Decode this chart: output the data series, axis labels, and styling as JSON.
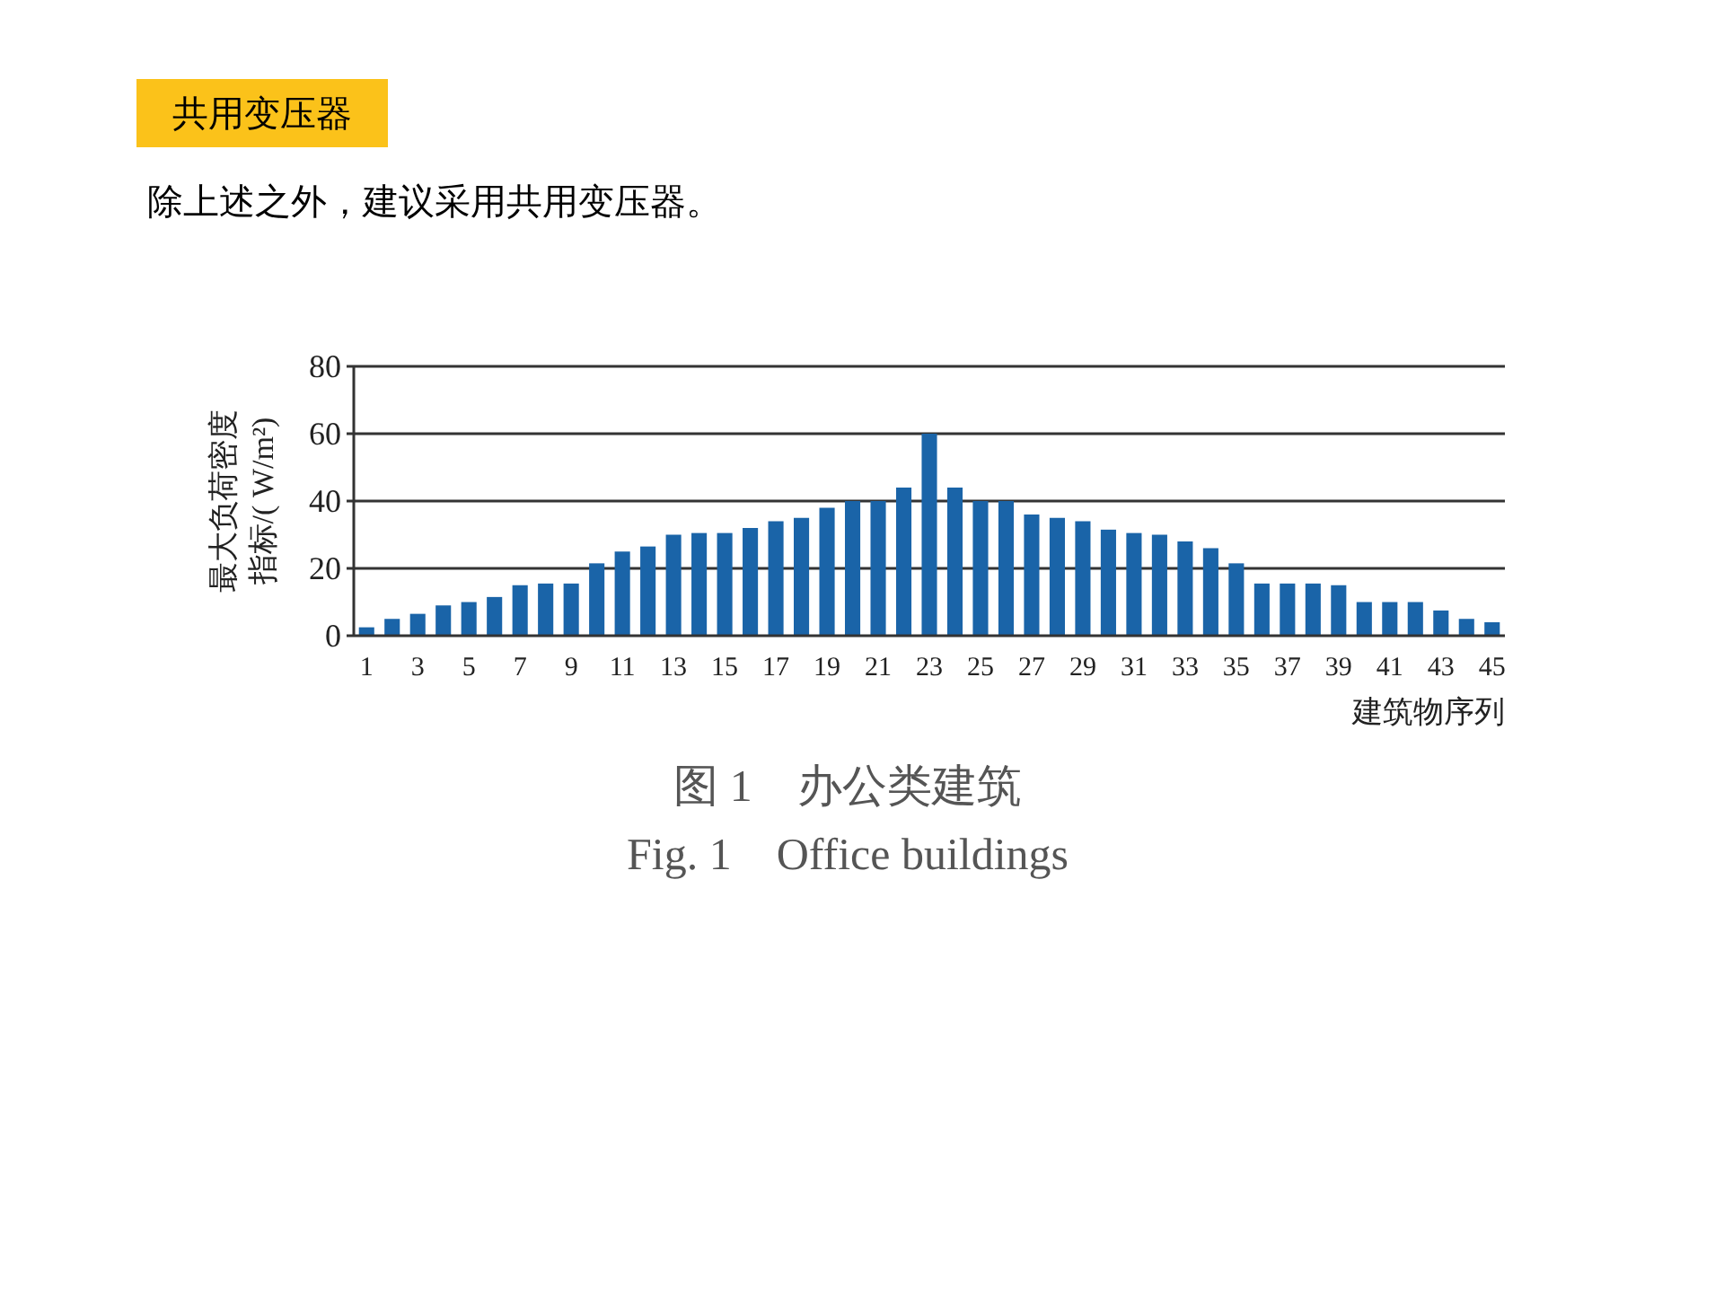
{
  "chart_data": {
    "type": "bar",
    "title": "共用变压器",
    "subtitle": "除上述之外，建议采用共用变压器。",
    "annotations": [
      "图 1　办公类建筑",
      "Fig. 1　Office buildings"
    ],
    "ylabel": "最大负荷密度指标/( W/m²)",
    "xlabel": "建筑物序列",
    "categories": [
      "1",
      null,
      "3",
      null,
      "5",
      null,
      "7",
      null,
      "9",
      null,
      "11",
      null,
      "13",
      null,
      "15",
      null,
      "17",
      null,
      "19",
      null,
      "21",
      null,
      "23",
      null,
      "25",
      null,
      "27",
      null,
      "29",
      null,
      "31",
      null,
      "33",
      null,
      "35",
      null,
      "37",
      null,
      "39",
      null,
      "41",
      null,
      "43",
      null,
      "45"
    ],
    "values": [
      2.5,
      5,
      6.5,
      9,
      10,
      11.5,
      15,
      15.5,
      15.5,
      21.5,
      25,
      26.5,
      30,
      30.5,
      30.5,
      32,
      34,
      35,
      38,
      40,
      40,
      44,
      60,
      44,
      40,
      40,
      36,
      35,
      34,
      31.5,
      30.5,
      30,
      28,
      26,
      21.5,
      15.5,
      15.5,
      15.5,
      15,
      10,
      10,
      10,
      7.5,
      5,
      4
    ],
    "color": "#1a64a8",
    "ylim": [
      0,
      80
    ],
    "yticks": [
      0,
      20,
      40,
      60,
      80
    ],
    "grid": "y"
  }
}
